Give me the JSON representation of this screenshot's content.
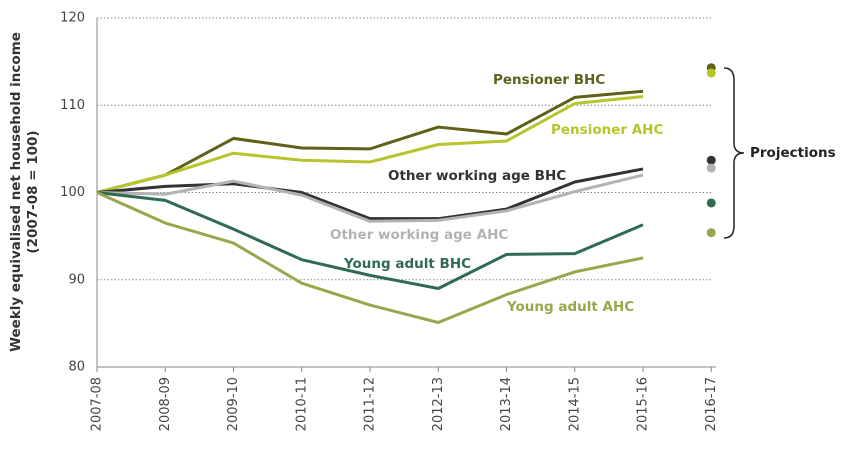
{
  "chart_data": {
    "type": "line",
    "y_label": [
      "Weekly equivalised net household  income",
      "(2007-08 = 100)"
    ],
    "categories": [
      "2007-08",
      "2008-09",
      "2009-10",
      "2010-11",
      "2011-12",
      "2012-13",
      "2013-14",
      "2014-15",
      "2015-16",
      "2016-17"
    ],
    "series": [
      {
        "name": "Pensioner BHC",
        "color": "#5e6117",
        "values": [
          100,
          102,
          106.2,
          105.1,
          105,
          107.5,
          106.7,
          110.9,
          111.6,
          null
        ],
        "projection": 114.3
      },
      {
        "name": "Pensioner AHC",
        "color": "#b8c42b",
        "values": [
          100,
          102,
          104.5,
          103.7,
          103.5,
          105.5,
          105.9,
          110.2,
          111,
          null
        ],
        "projection": 113.7
      },
      {
        "name": "Other working age BHC",
        "color": "#333333",
        "values": [
          100,
          100.7,
          101,
          100,
          97,
          97,
          98.1,
          101.2,
          102.7,
          null
        ],
        "projection": 103.7
      },
      {
        "name": "Other working age AHC",
        "color": "#b3b3b3",
        "values": [
          100,
          99.8,
          101.3,
          99.7,
          96.7,
          96.8,
          97.9,
          100.1,
          102,
          null
        ],
        "projection": 102.8
      },
      {
        "name": "Young adult BHC",
        "color": "#2f6b50",
        "values": [
          100,
          99.1,
          95.8,
          92.3,
          90.5,
          89,
          92.9,
          93,
          96.3,
          null
        ],
        "projection": 98.8
      },
      {
        "name": "Young adult AHC",
        "color": "#96a84b",
        "values": [
          100,
          96.5,
          94.2,
          89.6,
          87.1,
          85.1,
          88.3,
          90.9,
          92.5,
          null
        ],
        "projection": 95.4
      }
    ],
    "annotation": "Projections",
    "ylim": [
      80,
      120
    ],
    "yticks": [
      80,
      90,
      100,
      110,
      120
    ],
    "grid": true
  }
}
